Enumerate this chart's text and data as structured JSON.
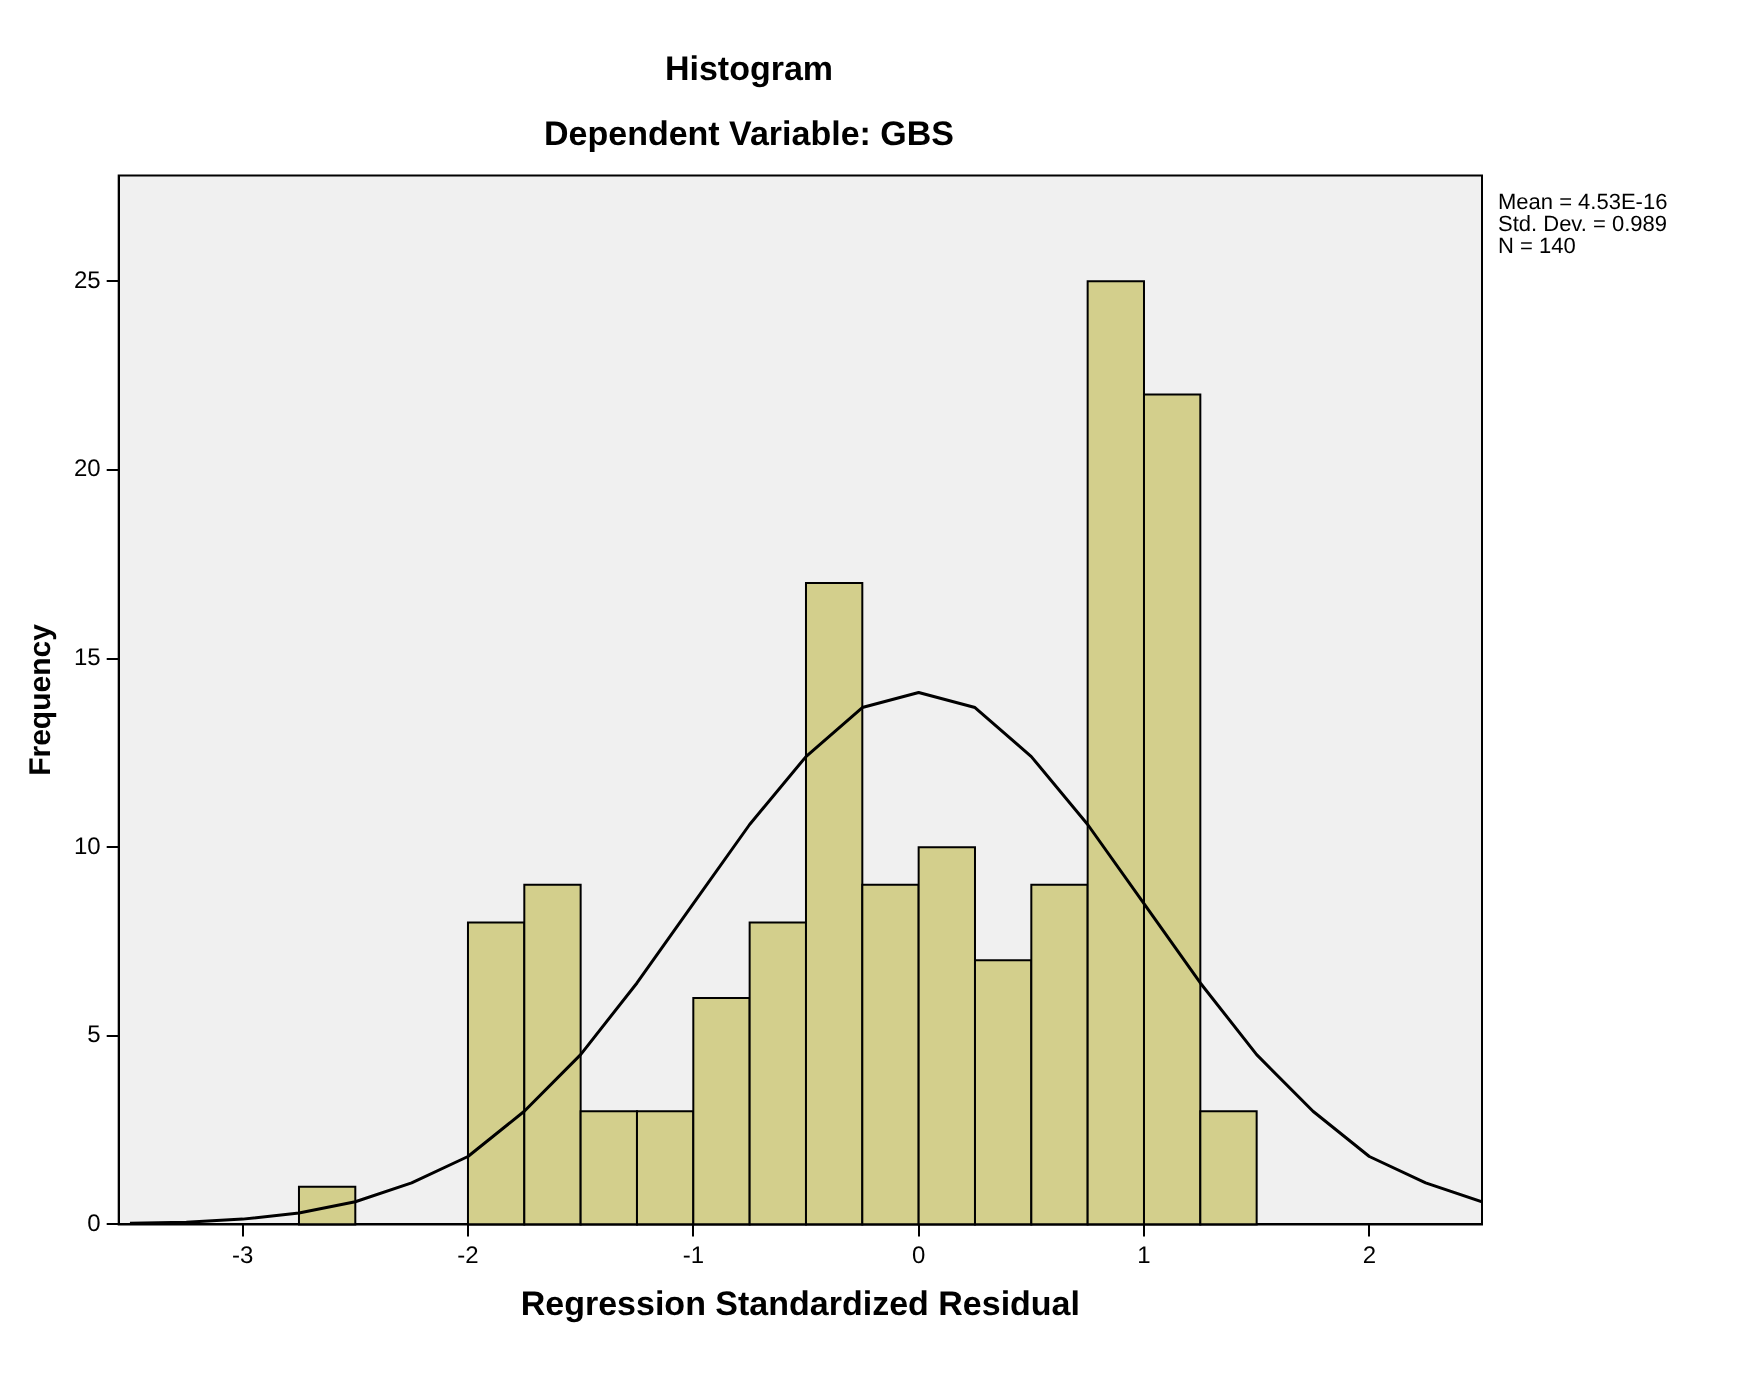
{
  "chart_data": {
    "type": "histogram",
    "title": "Histogram",
    "subtitle": "Dependent Variable: GBS",
    "xlabel": "Regression Standardized Residual",
    "ylabel": "Frequency",
    "bins": [
      -2.75,
      -2.5,
      -2.25,
      -2,
      -1.75,
      -1.5,
      -1.25,
      -1,
      -0.75,
      -0.5,
      -0.25,
      0,
      0.25,
      0.5,
      0.75,
      1,
      1.25,
      1.5
    ],
    "values": [
      1,
      0,
      0,
      8,
      9,
      3,
      3,
      6,
      8,
      17,
      9,
      10,
      7,
      9,
      25,
      22,
      3
    ],
    "color": "#d3cf8c",
    "series": [
      {
        "type": "line",
        "color": "#000000",
        "x": [
          -3.5,
          -3.25,
          -3,
          -2.75,
          -2.5,
          -2.25,
          -2,
          -1.75,
          -1.5,
          -1.25,
          -1,
          -0.75,
          -0.5,
          -0.25,
          0,
          0.25,
          0.5,
          0.75,
          1,
          1.25,
          1.5,
          1.75,
          2,
          2.25,
          2.5
        ],
        "values": [
          0.03,
          0.06,
          0.14,
          0.3,
          0.6,
          1.1,
          1.8,
          3,
          4.5,
          6.4,
          8.5,
          10.6,
          12.4,
          13.7,
          14.1,
          13.7,
          12.4,
          10.6,
          8.5,
          6.4,
          4.5,
          3,
          1.8,
          1.1,
          0.6
        ]
      }
    ],
    "xlim": [
      -3.55,
      2.5
    ],
    "xticks": [
      -3,
      -2,
      -1,
      0,
      1,
      2
    ],
    "ylim": [
      0,
      27.8
    ],
    "yticks": [
      0,
      5,
      10,
      15,
      20,
      25
    ],
    "grid": false,
    "legend": false,
    "annotations": [
      "Mean = 4.53E-16",
      "Std. Dev. = 0.989",
      "N = 140"
    ]
  }
}
